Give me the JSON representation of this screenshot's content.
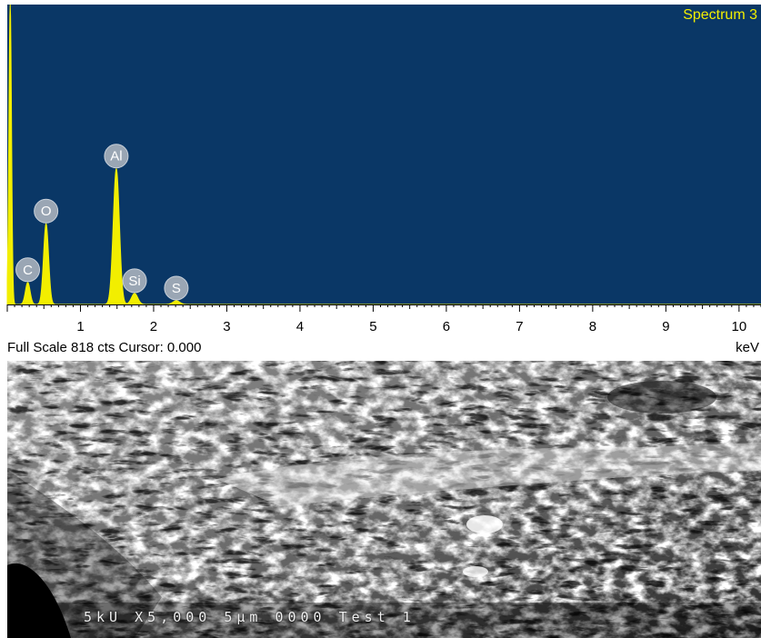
{
  "chart_data": {
    "type": "line",
    "title": "Spectrum 3",
    "xlabel": "keV",
    "xlim": [
      0,
      10.3
    ],
    "ylim": [
      0,
      818
    ],
    "x_ticks": [
      1,
      2,
      3,
      4,
      5,
      6,
      7,
      8,
      9,
      10
    ],
    "grid": false,
    "line_color": "#f2ee00",
    "background_color": "#0a3766",
    "peaks": [
      {
        "element": "C",
        "energy": 0.28,
        "counts": 60
      },
      {
        "element": "O",
        "energy": 0.53,
        "counts": 220
      },
      {
        "element": "Al",
        "energy": 1.49,
        "counts": 370
      },
      {
        "element": "Si",
        "energy": 1.74,
        "counts": 30
      },
      {
        "element": "S",
        "energy": 2.31,
        "counts": 10
      }
    ],
    "zero_peak": {
      "energy": 0.04,
      "counts": 818
    },
    "footer_left": "Full Scale 818 cts Cursor: 0.000",
    "footer_right": "keV"
  },
  "sem_image": {
    "caption": "5kU  X5,000  5μm  0000  Test  1"
  }
}
